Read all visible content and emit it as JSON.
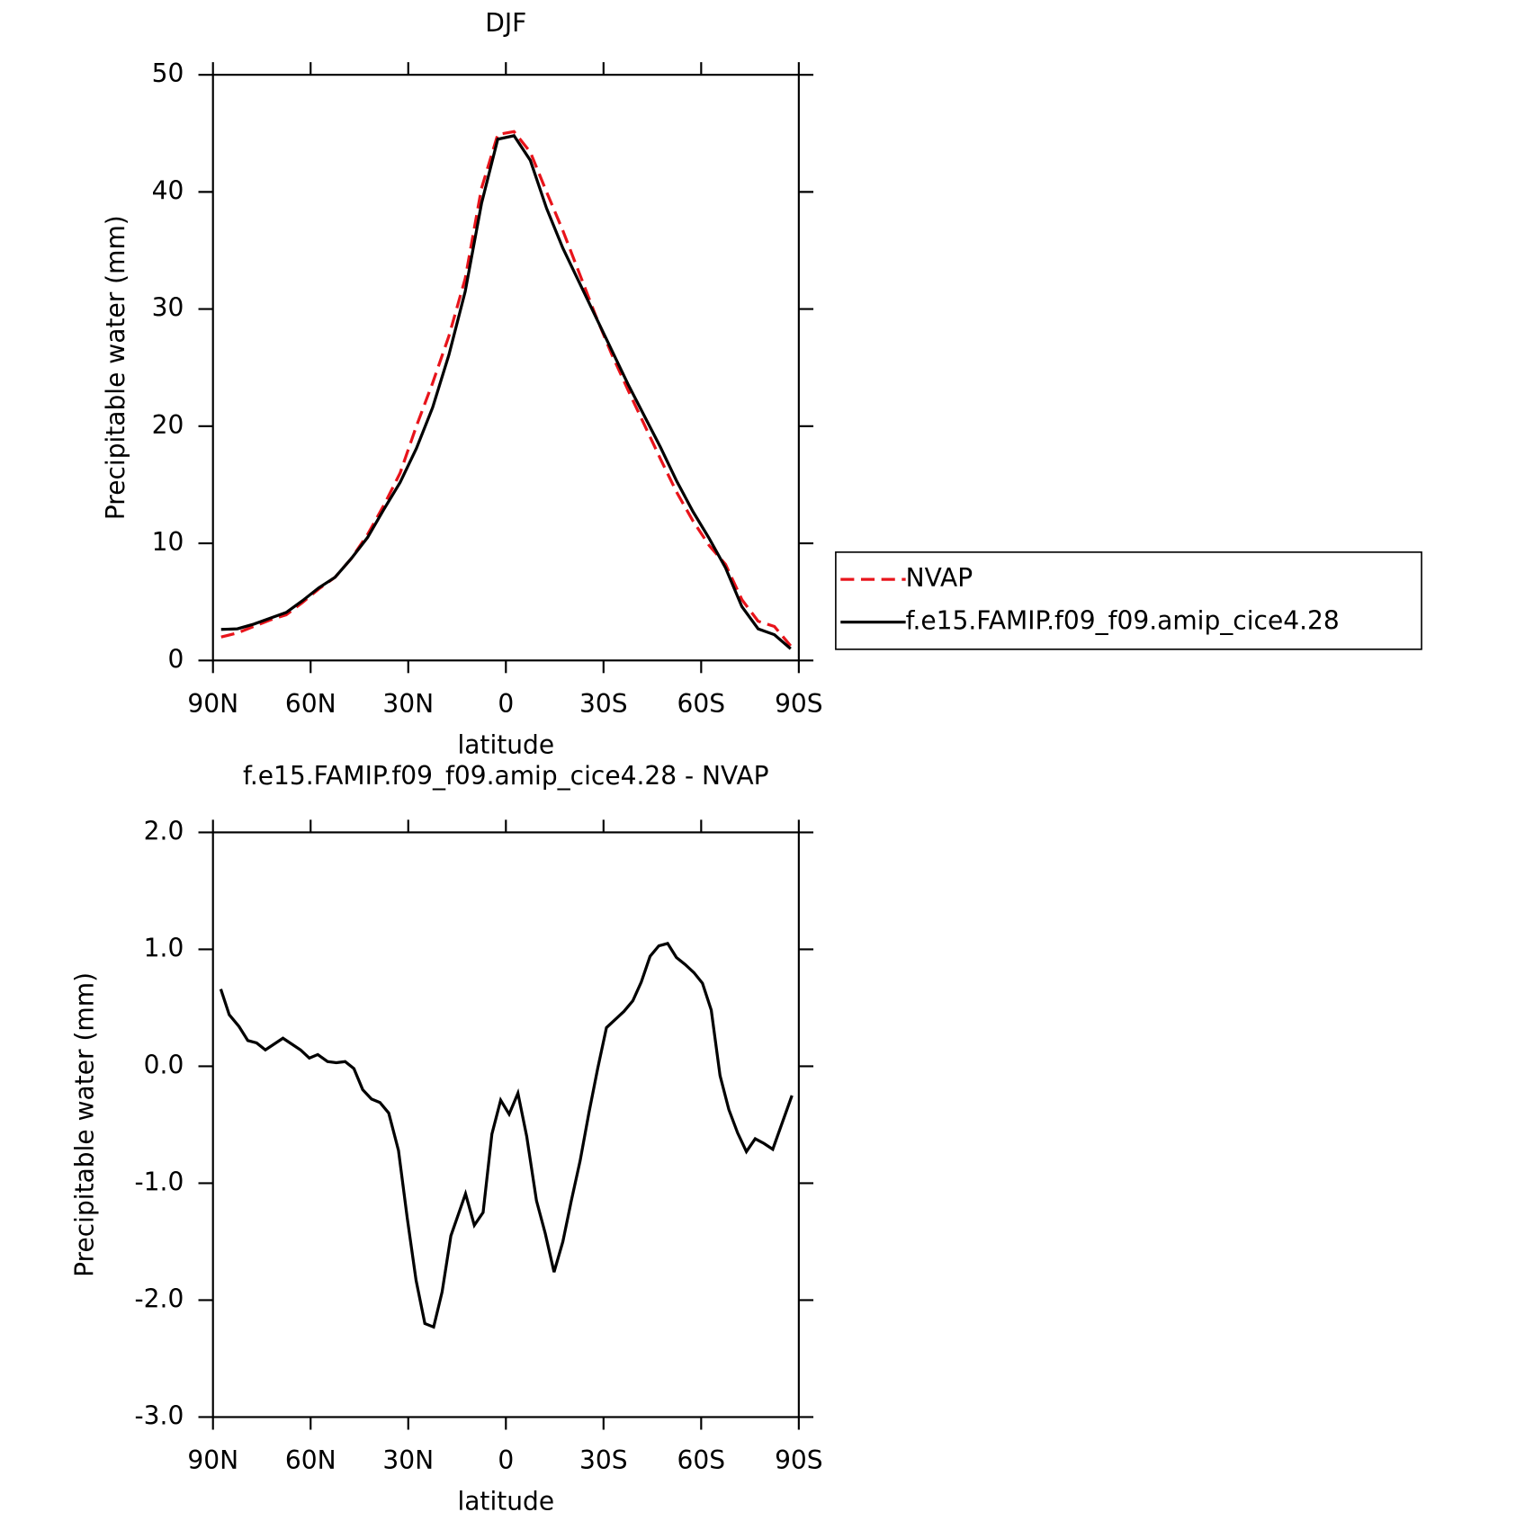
{
  "chart_data": [
    {
      "type": "line",
      "title": "DJF",
      "xlabel": "latitude",
      "ylabel": "Precipitable water (mm)",
      "x": [
        87.5,
        82.5,
        77.5,
        72.5,
        67.5,
        62.5,
        57.5,
        52.5,
        47.5,
        42.5,
        37.5,
        32.5,
        27.5,
        22.5,
        17.5,
        12.5,
        7.5,
        2.5,
        -2.5,
        -7.5,
        -12.5,
        -17.5,
        -22.5,
        -27.5,
        -32.5,
        -37.5,
        -42.5,
        -47.5,
        -52.5,
        -57.5,
        -62.5,
        -67.5,
        -72.5,
        -77.5,
        -82.5,
        -87.5
      ],
      "series": [
        {
          "name": "NVAP",
          "color": "#e8141b",
          "dashed": true,
          "values": [
            2.0,
            2.35,
            2.9,
            3.45,
            3.9,
            4.95,
            6.1,
            7.1,
            8.7,
            10.75,
            13.25,
            16.0,
            20.0,
            23.7,
            27.7,
            32.6,
            40.3,
            44.9,
            45.15,
            43.4,
            40.0,
            36.7,
            33.1,
            29.5,
            26.15,
            23.1,
            20.15,
            17.2,
            14.35,
            11.9,
            9.8,
            8.2,
            5.2,
            3.35,
            2.9,
            1.25
          ]
        },
        {
          "name": "f.e15.FAMIP.f09_f09.amip_cice4.28",
          "color": "#000000",
          "dashed": false,
          "values": [
            2.65,
            2.7,
            3.1,
            3.6,
            4.1,
            5.1,
            6.2,
            7.1,
            8.7,
            10.5,
            12.9,
            15.2,
            18.1,
            21.6,
            26.1,
            31.5,
            39.0,
            44.5,
            44.8,
            42.7,
            38.6,
            35.2,
            32.3,
            29.4,
            26.5,
            23.6,
            20.9,
            18.2,
            15.3,
            12.7,
            10.4,
            7.9,
            4.6,
            2.7,
            2.2,
            1.0
          ]
        }
      ],
      "xlim": [
        90,
        -90
      ],
      "xticks": [
        {
          "value": 90,
          "label": "90N"
        },
        {
          "value": 60,
          "label": "60N"
        },
        {
          "value": 30,
          "label": "30N"
        },
        0,
        {
          "value": -30,
          "label": "30S"
        },
        {
          "value": -60,
          "label": "60S"
        },
        {
          "value": -90,
          "label": "90S"
        }
      ],
      "ylim": [
        0,
        50
      ],
      "yticks": [
        0,
        10,
        20,
        30,
        40,
        50
      ],
      "legend": "right"
    },
    {
      "type": "line",
      "title": "f.e15.FAMIP.f09_f09.amip_cice4.28 - NVAP",
      "xlabel": "latitude",
      "ylabel": "Precipitable water (mm)",
      "x": [
        87.6,
        85.0,
        82.0,
        79.3,
        76.6,
        73.9,
        71.2,
        68.5,
        65.8,
        63.1,
        60.4,
        57.8,
        54.8,
        52.1,
        49.4,
        46.7,
        44.0,
        41.3,
        38.7,
        36.0,
        33.0,
        30.3,
        27.6,
        24.9,
        22.2,
        19.6,
        16.9,
        12.4,
        9.7,
        7.0,
        4.3,
        1.6,
        -1.0,
        -3.7,
        -6.4,
        -9.4,
        -12.1,
        -14.8,
        -17.5,
        -20.1,
        -22.8,
        -25.5,
        -28.2,
        -30.9,
        -33.6,
        -36.3,
        -39.0,
        -41.6,
        -44.3,
        -47.0,
        -49.7,
        -52.4,
        -55.1,
        -57.8,
        -60.4,
        -63.1,
        -65.8,
        -68.5,
        -71.2,
        -73.9,
        -76.6,
        -79.3,
        -82.0,
        -87.9
      ],
      "values": [
        0.66,
        0.44,
        0.34,
        0.22,
        0.2,
        0.14,
        0.19,
        0.24,
        0.19,
        0.14,
        0.07,
        0.1,
        0.04,
        0.03,
        0.04,
        -0.02,
        -0.2,
        -0.28,
        -0.31,
        -0.4,
        -0.72,
        -1.3,
        -1.83,
        -2.2,
        -2.23,
        -1.93,
        -1.45,
        -1.09,
        -1.36,
        -1.25,
        -0.58,
        -0.29,
        -0.41,
        -0.23,
        -0.6,
        -1.15,
        -1.43,
        -1.76,
        -1.5,
        -1.15,
        -0.81,
        -0.4,
        -0.02,
        0.33,
        0.4,
        0.47,
        0.56,
        0.72,
        0.94,
        1.03,
        1.05,
        0.93,
        0.87,
        0.8,
        0.71,
        0.48,
        -0.08,
        -0.37,
        -0.57,
        -0.73,
        -0.62,
        -0.66,
        -0.71,
        -0.25
      ],
      "color": "#000000",
      "xlim": [
        90,
        -90
      ],
      "xticks": [
        {
          "value": 90,
          "label": "90N"
        },
        {
          "value": 60,
          "label": "60N"
        },
        {
          "value": 30,
          "label": "30N"
        },
        0,
        {
          "value": -30,
          "label": "30S"
        },
        {
          "value": -60,
          "label": "60S"
        },
        {
          "value": -90,
          "label": "90S"
        }
      ],
      "ylim": [
        -3,
        2
      ],
      "yticks": [
        {
          "value": 2,
          "label": "2.0"
        },
        {
          "value": 1,
          "label": "1.0"
        },
        {
          "value": 0,
          "label": "0.0"
        },
        {
          "value": -1,
          "label": "-1.0"
        },
        {
          "value": -2,
          "label": "-2.0"
        },
        {
          "value": -3,
          "label": "-3.0"
        }
      ]
    }
  ]
}
